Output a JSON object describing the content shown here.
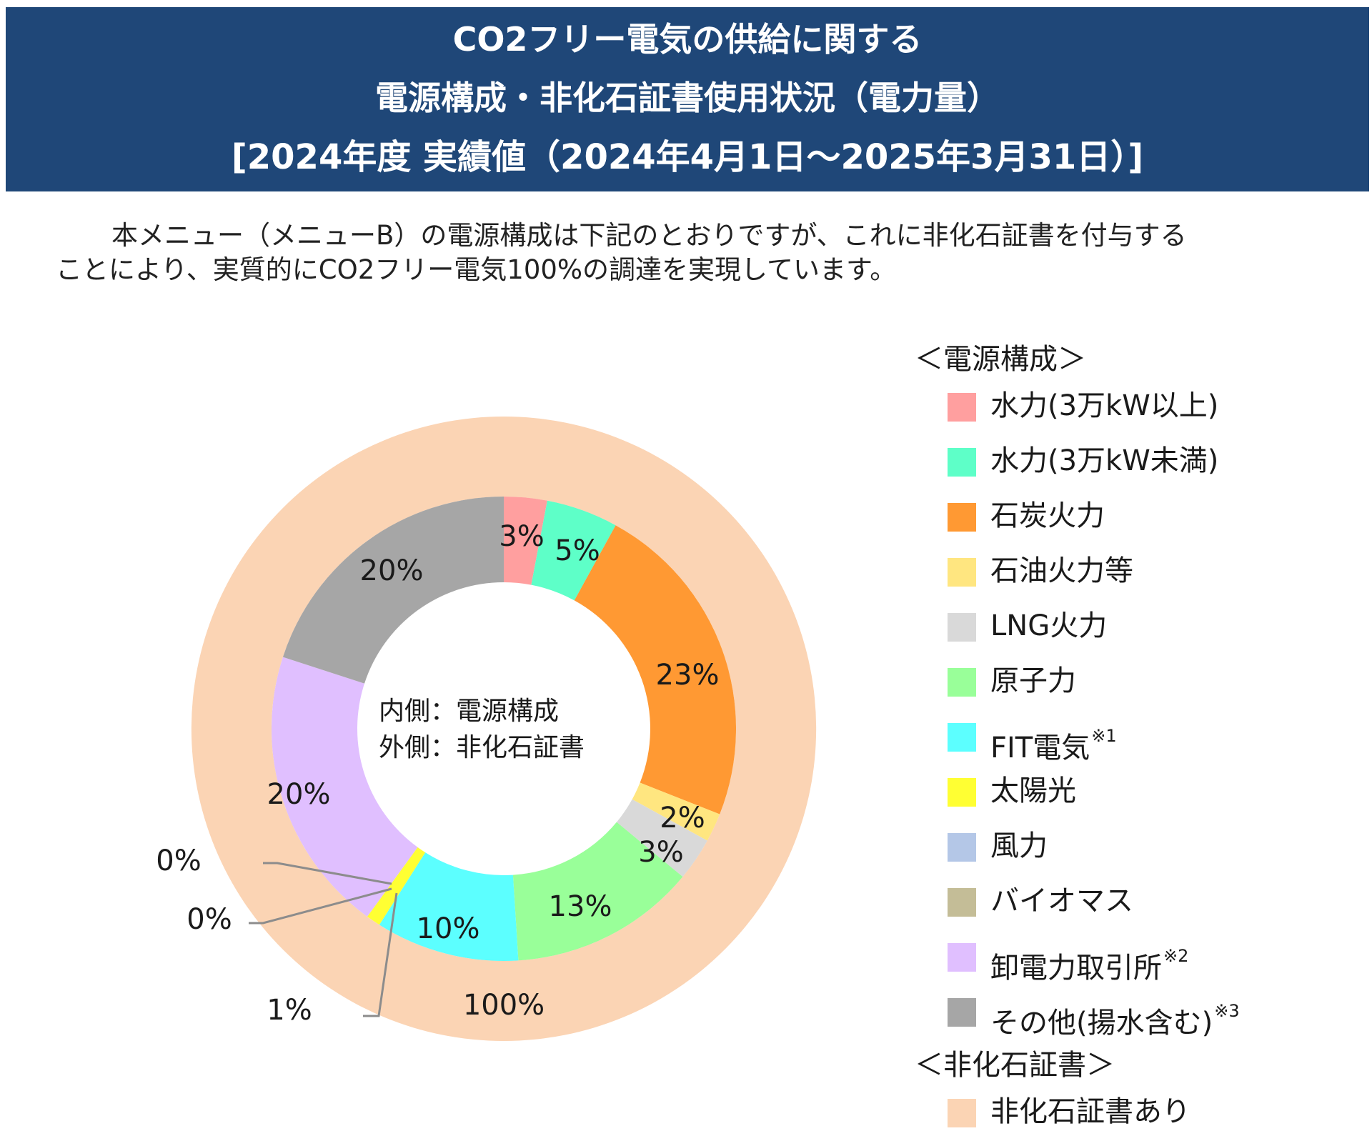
{
  "header": {
    "line1": "CO2フリー電気の供給に関する",
    "line2": "電源構成・非化石証書使用状況（電力量）",
    "line3": "[2024年度 実績値（2024年4月1日～2025年3月31日）]"
  },
  "intro": {
    "line1": "本メニュー（メニューB）の電源構成は下記のとおりですが、これに非化石証書を付与する",
    "line2": "ことにより、実質的にCO2フリー電気100%の調達を実現しています。"
  },
  "center_label": {
    "line1": "内側：電源構成",
    "line2": "外側：非化石証書"
  },
  "legend": {
    "source_heading": "＜電源構成＞",
    "cert_heading": "＜非化石証書＞",
    "items": [
      {
        "label": "水力(3万kW以上)",
        "note": "",
        "color": "#ff9f9f"
      },
      {
        "label": "水力(3万kW未満)",
        "note": "",
        "color": "#5effc8"
      },
      {
        "label": "石炭火力",
        "note": "",
        "color": "#ff9933"
      },
      {
        "label": "石油火力等",
        "note": "",
        "color": "#ffe680"
      },
      {
        "label": "LNG火力",
        "note": "",
        "color": "#d9d9d9"
      },
      {
        "label": "原子力",
        "note": "",
        "color": "#99ff99"
      },
      {
        "label": "FIT電気",
        "note": "※1",
        "color": "#5cffff"
      },
      {
        "label": "太陽光",
        "note": "",
        "color": "#ffff33"
      },
      {
        "label": "風力",
        "note": "",
        "color": "#b4c7e7"
      },
      {
        "label": "バイオマス",
        "note": "",
        "color": "#c4bd97"
      },
      {
        "label": "卸電力取引所",
        "note": "※2",
        "color": "#e0bfff"
      },
      {
        "label": "その他(揚水含む)",
        "note": "※3",
        "color": "#a6a6a6"
      }
    ],
    "cert_items": [
      {
        "label": "非化石証書あり",
        "color": "#fbd4b4"
      }
    ]
  },
  "chart_data": {
    "type": "donut",
    "inner": {
      "name": "電源構成",
      "categories": [
        "水力(3万kW以上)",
        "水力(3万kW未満)",
        "石炭火力",
        "石油火力等",
        "LNG火力",
        "原子力",
        "FIT電気",
        "太陽光",
        "風力",
        "バイオマス",
        "卸電力取引所",
        "その他(揚水含む)"
      ],
      "values": [
        3,
        5,
        23,
        2,
        3,
        13,
        10,
        1,
        0,
        0,
        20,
        20
      ],
      "labels": [
        "3%",
        "5%",
        "23%",
        "2%",
        "3%",
        "13%",
        "10%",
        "1%",
        "0%",
        "0%",
        "20%",
        "20%"
      ]
    },
    "outer": {
      "name": "非化石証書",
      "categories": [
        "非化石証書あり"
      ],
      "values": [
        100
      ],
      "labels": [
        "100%"
      ]
    }
  }
}
